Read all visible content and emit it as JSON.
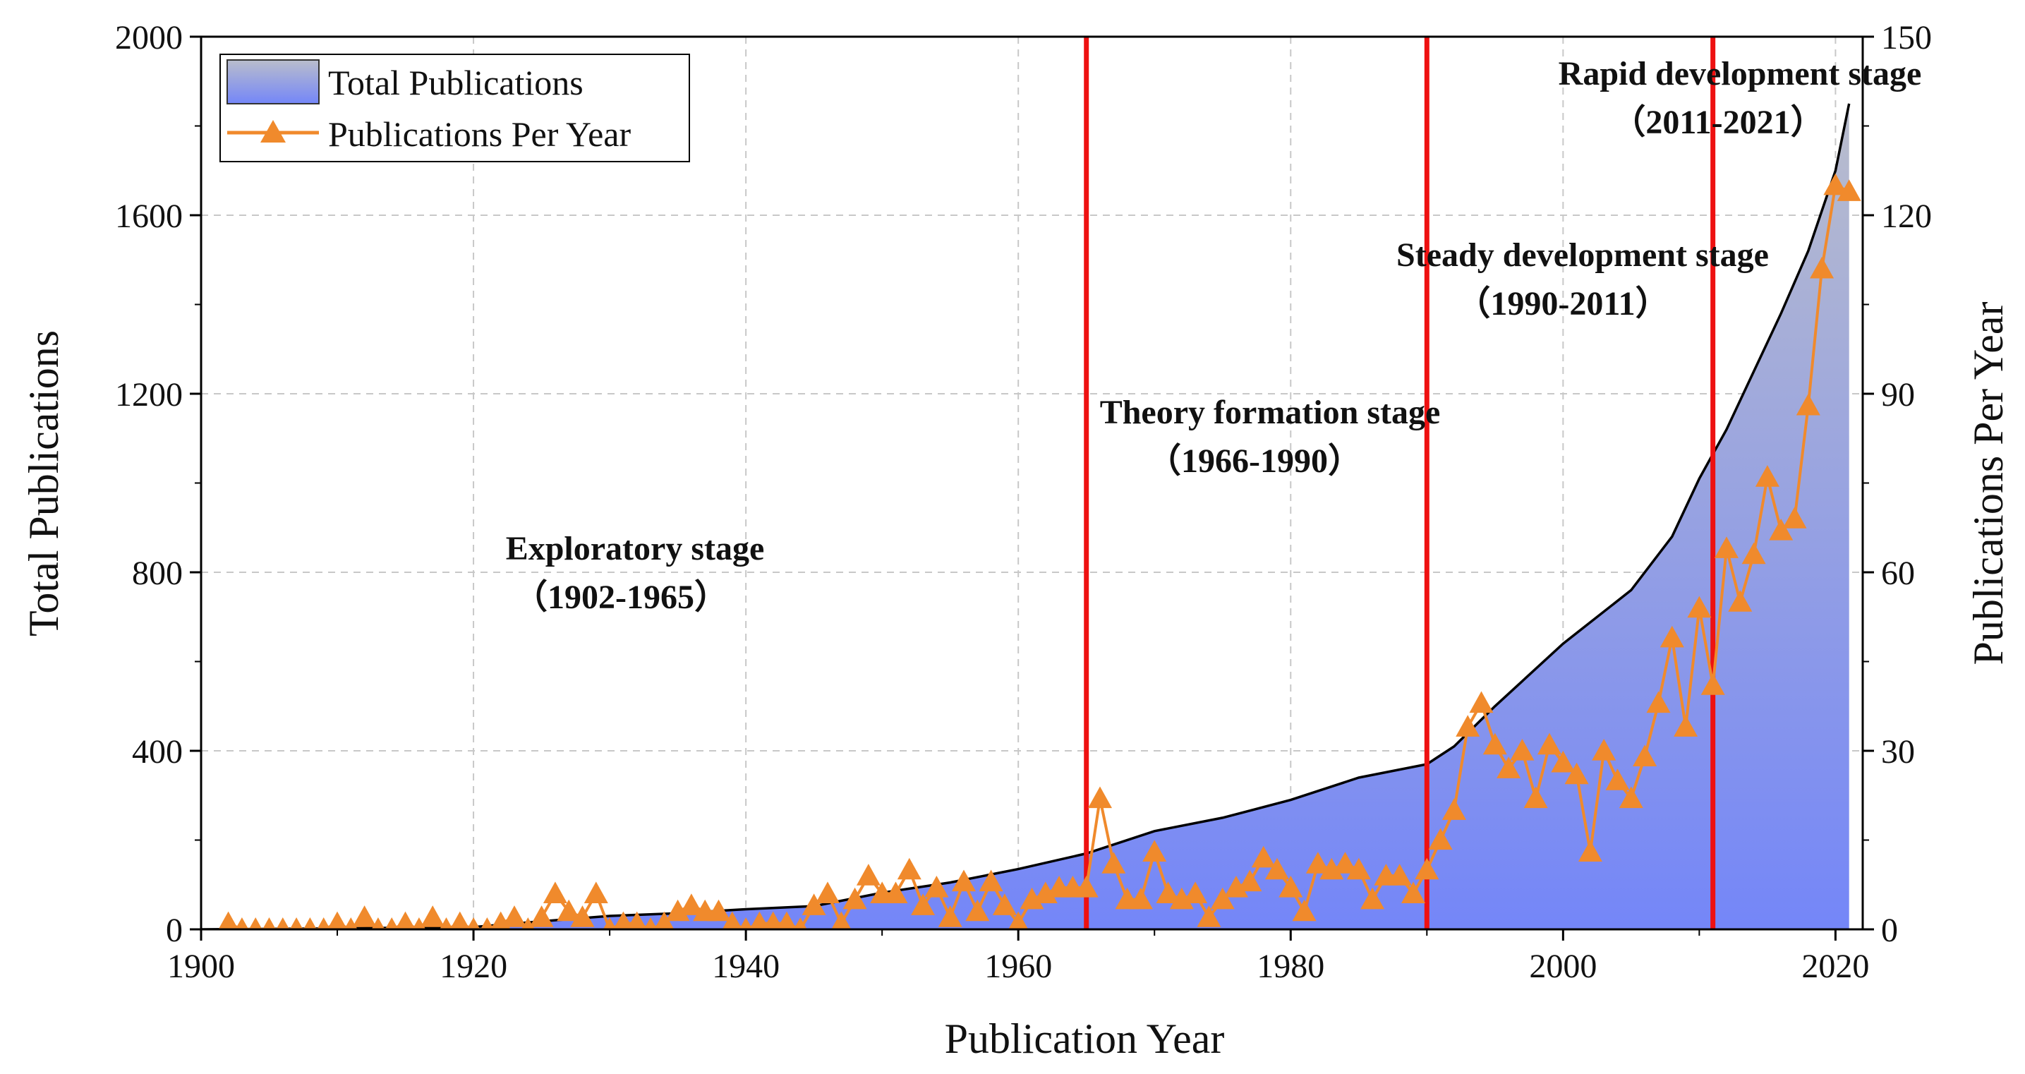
{
  "chart_data": {
    "type": "area+line",
    "xlabel": "Publication Year",
    "ylabel_left": "Total Publications",
    "ylabel_right": "Publications Per Year",
    "xlim": [
      1900,
      2022
    ],
    "ylim_left": [
      0,
      2000
    ],
    "ylim_right": [
      0,
      150
    ],
    "x_ticks": [
      1900,
      1920,
      1940,
      1960,
      1980,
      2000,
      2020
    ],
    "y_ticks_left": [
      0,
      400,
      800,
      1200,
      1600,
      2000
    ],
    "y_ticks_right": [
      0,
      30,
      60,
      90,
      120,
      150
    ],
    "grid": true,
    "legend_position": "top-left",
    "legend": [
      "Total Publications",
      "Publications Per Year"
    ],
    "colors": {
      "area_top": "#b9bdcc",
      "area_bottom": "#7486f8",
      "area_line": "#000000",
      "per_year": "#f08a2c",
      "stage_line": "#ee1111",
      "grid": "#c8c8c8"
    },
    "stage_lines": [
      1965,
      1990,
      2011
    ],
    "stages": [
      {
        "name": "Exploratory stage",
        "period": "（1902-1965）"
      },
      {
        "name": "Theory formation stage",
        "period": "（1966-1990）"
      },
      {
        "name": "Steady development stage",
        "period": "（1990-2011）"
      },
      {
        "name": "Rapid development stage",
        "period": "（2011-2021）"
      }
    ],
    "series": [
      {
        "name": "Total Publications",
        "axis": "left",
        "x": [
          1900,
          1910,
          1920,
          1925,
          1930,
          1935,
          1940,
          1945,
          1950,
          1955,
          1960,
          1965,
          1970,
          1975,
          1980,
          1985,
          1990,
          1992,
          1995,
          2000,
          2005,
          2008,
          2010,
          2012,
          2014,
          2016,
          2018,
          2020,
          2021
        ],
        "values": [
          0,
          2,
          5,
          18,
          30,
          36,
          45,
          52,
          82,
          105,
          135,
          170,
          220,
          250,
          290,
          340,
          370,
          410,
          500,
          640,
          760,
          880,
          1010,
          1120,
          1250,
          1380,
          1520,
          1700,
          1850
        ]
      },
      {
        "name": "Publications Per Year",
        "axis": "right",
        "x": [
          1902,
          1903,
          1904,
          1905,
          1906,
          1907,
          1908,
          1909,
          1910,
          1911,
          1912,
          1913,
          1914,
          1915,
          1916,
          1917,
          1918,
          1919,
          1920,
          1921,
          1922,
          1923,
          1924,
          1925,
          1926,
          1927,
          1928,
          1929,
          1930,
          1931,
          1932,
          1933,
          1934,
          1935,
          1936,
          1937,
          1938,
          1939,
          1940,
          1941,
          1942,
          1943,
          1944,
          1945,
          1946,
          1947,
          1948,
          1949,
          1950,
          1951,
          1952,
          1953,
          1954,
          1955,
          1956,
          1957,
          1958,
          1959,
          1960,
          1961,
          1962,
          1963,
          1964,
          1965,
          1966,
          1967,
          1968,
          1969,
          1970,
          1971,
          1972,
          1973,
          1974,
          1975,
          1976,
          1977,
          1978,
          1979,
          1980,
          1981,
          1982,
          1983,
          1984,
          1985,
          1986,
          1987,
          1988,
          1989,
          1990,
          1991,
          1992,
          1993,
          1994,
          1995,
          1996,
          1997,
          1998,
          1999,
          2000,
          2001,
          2002,
          2003,
          2004,
          2005,
          2006,
          2007,
          2008,
          2009,
          2010,
          2011,
          2012,
          2013,
          2014,
          2015,
          2016,
          2017,
          2018,
          2019,
          2020,
          2021
        ],
        "values": [
          1,
          0,
          0,
          0,
          0,
          0,
          0,
          0,
          1,
          0,
          2,
          0,
          0,
          1,
          0,
          2,
          0,
          1,
          0,
          0,
          1,
          2,
          0,
          2,
          6,
          3,
          2,
          6,
          0,
          1,
          1,
          0,
          1,
          3,
          4,
          3,
          3,
          1,
          0,
          1,
          1,
          1,
          0,
          4,
          6,
          1,
          5,
          9,
          6,
          6,
          10,
          4,
          7,
          2,
          8,
          3,
          8,
          4,
          1,
          5,
          6,
          7,
          7,
          7,
          22,
          11,
          5,
          5,
          13,
          6,
          5,
          6,
          2,
          5,
          7,
          8,
          12,
          10,
          7,
          3,
          11,
          10,
          11,
          10,
          5,
          9,
          9,
          6,
          10,
          15,
          20,
          34,
          38,
          31,
          27,
          30,
          22,
          31,
          28,
          26,
          13,
          30,
          25,
          22,
          29,
          38,
          49,
          34,
          54,
          41,
          64,
          55,
          63,
          76,
          67,
          69,
          88,
          111,
          125,
          124
        ]
      }
    ]
  }
}
